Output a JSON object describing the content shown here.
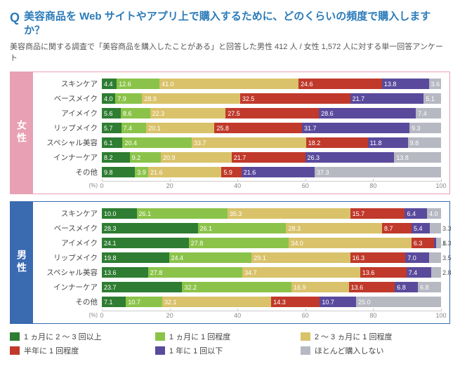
{
  "title": {
    "q_mark": "Q",
    "text": "美容商品を Web サイトやアプリ上で購入するために、どのくらいの頻度で購入しますか？"
  },
  "subtitle": "美容商品に関する調査で「美容商品を購入したことがある」と回答した男性 412 人 / 女性 1,572 人に対する単一回答アンケート",
  "colors": {
    "c1": "#2e7d32",
    "c2": "#8bc34a",
    "c3": "#d9c26a",
    "c4": "#c0392b",
    "c5": "#5a4a9c",
    "c6": "#b6b8c2"
  },
  "legend": [
    {
      "label": "1 ヵ月に 2 ～ 3 回以上",
      "colorKey": "c1"
    },
    {
      "label": "1 ヵ月に 1 回程度",
      "colorKey": "c2"
    },
    {
      "label": "2 ～ 3 ヵ月に 1 回程度",
      "colorKey": "c3"
    },
    {
      "label": "半年に 1 回程度",
      "colorKey": "c4"
    },
    {
      "label": "1 年に 1 回以下",
      "colorKey": "c5"
    },
    {
      "label": "ほとんど購入しない",
      "colorKey": "c6"
    }
  ],
  "axis": {
    "ticks": [
      0,
      20,
      40,
      60,
      80,
      100
    ],
    "unit": "(%)"
  },
  "panels": [
    {
      "key": "female",
      "label": "女性",
      "rows": [
        {
          "label": "スキンケア",
          "values": [
            4.4,
            12.6,
            41.0,
            24.6,
            13.8,
            3.6
          ]
        },
        {
          "label": "ベースメイク",
          "values": [
            4.0,
            7.9,
            28.9,
            32.5,
            21.7,
            5.1
          ]
        },
        {
          "label": "アイメイク",
          "values": [
            5.6,
            8.6,
            22.3,
            27.5,
            28.6,
            7.4
          ]
        },
        {
          "label": "リップメイク",
          "values": [
            5.7,
            7.4,
            20.1,
            25.8,
            31.7,
            9.3
          ]
        },
        {
          "label": "スペシャル美容",
          "values": [
            6.1,
            20.4,
            33.7,
            18.2,
            11.8,
            9.8
          ]
        },
        {
          "label": "インナーケア",
          "values": [
            8.2,
            9.2,
            20.9,
            21.7,
            26.3,
            13.8
          ]
        },
        {
          "label": "その他",
          "values": [
            9.8,
            3.9,
            21.6,
            5.9,
            21.6,
            37.3
          ]
        }
      ]
    },
    {
      "key": "male",
      "label": "男性",
      "rows": [
        {
          "label": "スキンケア",
          "values": [
            10.0,
            26.1,
            35.3,
            15.7,
            6.4,
            4.0
          ]
        },
        {
          "label": "ベースメイク",
          "values": [
            28.3,
            26.1,
            28.3,
            8.7,
            5.4,
            3.3
          ]
        },
        {
          "label": "アイメイク",
          "values": [
            24.1,
            27.8,
            34.0,
            6.3,
            0.6,
            1.3
          ]
        },
        {
          "label": "リップメイク",
          "values": [
            19.8,
            24.4,
            29.1,
            16.3,
            7.0,
            3.5
          ]
        },
        {
          "label": "スペシャル美容",
          "values": [
            13.6,
            27.8,
            34.7,
            13.6,
            7.4,
            2.8
          ]
        },
        {
          "label": "インナーケア",
          "values": [
            23.7,
            32.2,
            16.9,
            13.6,
            6.8,
            6.8
          ]
        },
        {
          "label": "その他",
          "values": [
            7.1,
            10.7,
            32.1,
            14.3,
            10.7,
            25.0
          ]
        }
      ]
    }
  ]
}
